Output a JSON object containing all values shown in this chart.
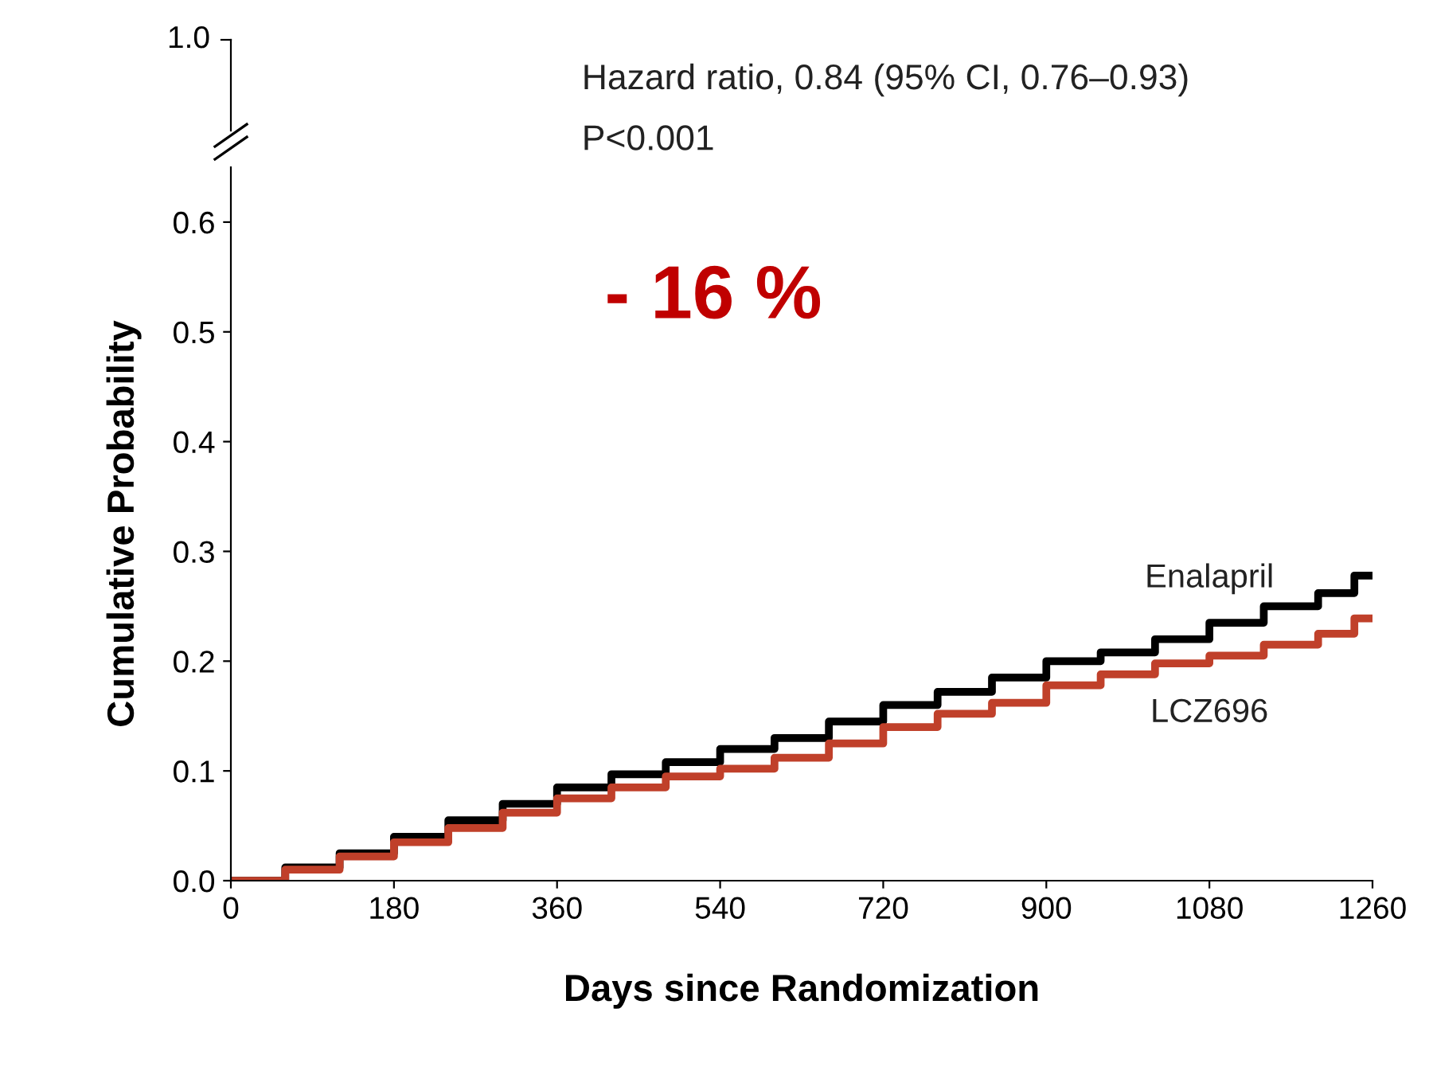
{
  "chart_data": {
    "type": "step",
    "xlabel": "Days since Randomization",
    "ylabel": "Cumulative Probability",
    "annotations": [
      "Hazard ratio, 0.84 (95% CI, 0.76–0.93)",
      "P<0.001",
      "- 16 %",
      "1.0"
    ],
    "series": [
      {
        "name": "Enalapril",
        "color": "#000000",
        "x": [
          0,
          60,
          120,
          180,
          240,
          300,
          360,
          420,
          480,
          540,
          600,
          660,
          720,
          780,
          840,
          900,
          960,
          1020,
          1080,
          1140,
          1200,
          1240,
          1260
        ],
        "values": [
          0,
          0.012,
          0.025,
          0.04,
          0.055,
          0.07,
          0.085,
          0.097,
          0.108,
          0.12,
          0.13,
          0.145,
          0.16,
          0.172,
          0.185,
          0.2,
          0.208,
          0.22,
          0.235,
          0.25,
          0.262,
          0.278,
          0.278
        ]
      },
      {
        "name": "LCZ696",
        "color": "#c0402a",
        "x": [
          0,
          60,
          120,
          180,
          240,
          300,
          360,
          420,
          480,
          540,
          600,
          660,
          720,
          780,
          840,
          900,
          960,
          1020,
          1080,
          1140,
          1200,
          1240,
          1260
        ],
        "values": [
          0,
          0.01,
          0.022,
          0.035,
          0.048,
          0.062,
          0.075,
          0.085,
          0.095,
          0.102,
          0.112,
          0.125,
          0.14,
          0.152,
          0.162,
          0.178,
          0.188,
          0.198,
          0.205,
          0.215,
          0.225,
          0.239,
          0.239
        ]
      }
    ],
    "xlim": [
      0,
      1260
    ],
    "xticks": [
      0,
      180,
      360,
      540,
      720,
      900,
      1080,
      1260
    ],
    "ylim": [
      0,
      0.65
    ],
    "yticks": [
      {
        "value": 0,
        "label": "0.0"
      },
      0.1,
      0.2,
      0.3,
      0.4,
      0.5,
      0.6
    ],
    "grid": false
  }
}
